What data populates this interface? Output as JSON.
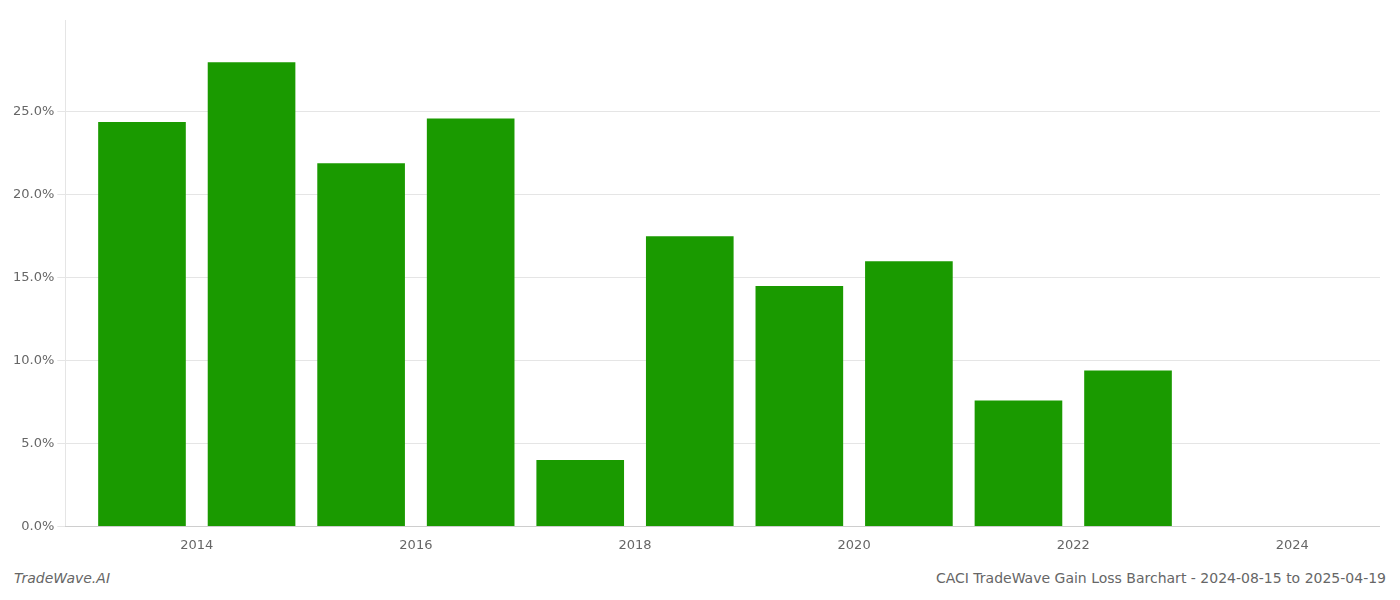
{
  "chart_data": {
    "type": "bar",
    "x": [
      2013.5,
      2014.5,
      2015.5,
      2016.5,
      2017.5,
      2018.5,
      2019.5,
      2020.5,
      2021.5,
      2022.5,
      2023.5
    ],
    "values": [
      0.244,
      0.28,
      0.219,
      0.246,
      0.04,
      0.175,
      0.145,
      0.16,
      0.076,
      0.094,
      0.0
    ],
    "color": "#1a9a00",
    "xlim": [
      2012.8,
      2024.8
    ],
    "xticks": [
      2014,
      2016,
      2018,
      2020,
      2022,
      2024
    ],
    "ylim": [
      0,
      0.305
    ],
    "yticks": [
      {
        "value": 0.0,
        "label": "0.0%"
      },
      {
        "value": 0.05,
        "label": "5.0%"
      },
      {
        "value": 0.1,
        "label": "10.0%"
      },
      {
        "value": 0.15,
        "label": "15.0%"
      },
      {
        "value": 0.2,
        "label": "20.0%"
      },
      {
        "value": 0.25,
        "label": "25.0%"
      }
    ],
    "grid": "y",
    "annotations": [
      "TradeWave.AI",
      "CACI TradeWave Gain Loss Barchart - 2024-08-15 to 2025-04-19"
    ]
  }
}
